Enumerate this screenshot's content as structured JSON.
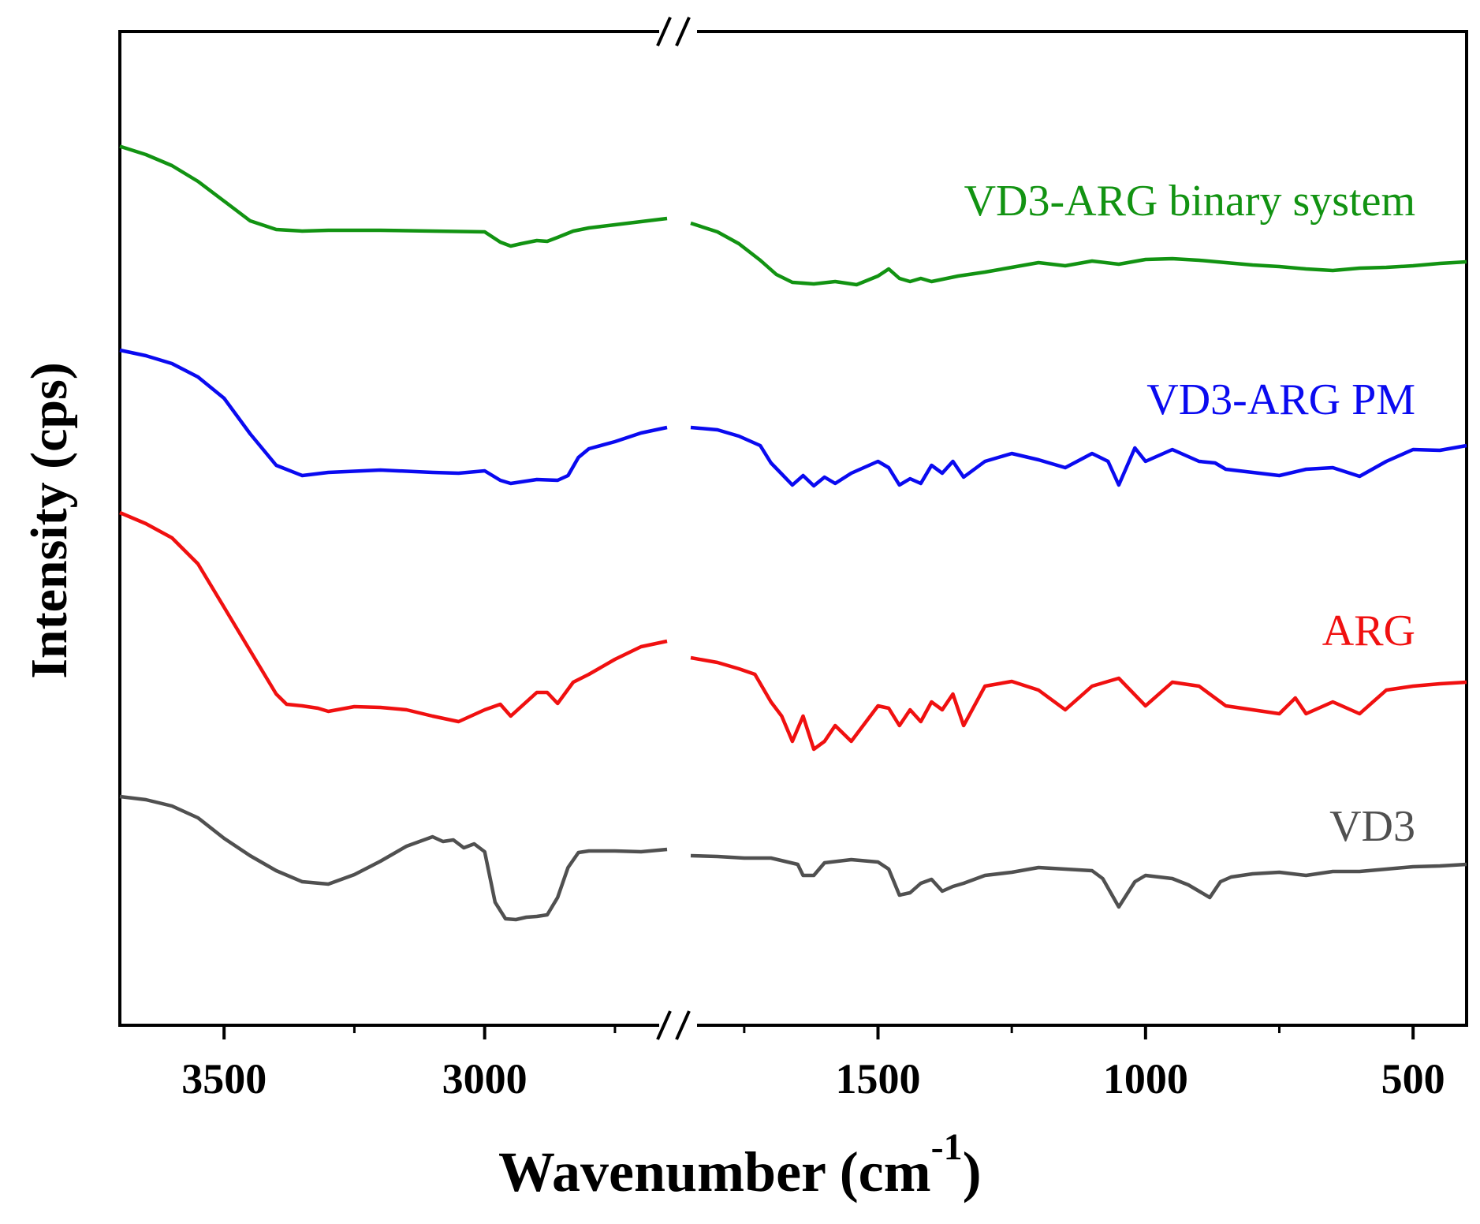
{
  "chart_data": {
    "type": "line",
    "title": "",
    "xlabel": "Wavenumber (cm",
    "xlabel_superscript": "-1",
    "xlabel_close": ")",
    "ylabel": "Intensity (cps)",
    "x_direction": "decreasing",
    "x_break": {
      "between": [
        2650,
        1850
      ]
    },
    "x_segments": [
      {
        "xlim": [
          3700,
          2650
        ],
        "ticks": [
          3500,
          3000
        ],
        "minor_ticks": [
          3250,
          2750
        ]
      },
      {
        "xlim": [
          1850,
          400
        ],
        "ticks": [
          1500,
          1000,
          500
        ],
        "minor_ticks": [
          1750,
          1250,
          750
        ]
      }
    ],
    "yticks_shown": false,
    "series": [
      {
        "name": "VD3-ARG binary system",
        "color": "#129312",
        "points": [
          [
            3700,
            0.5
          ],
          [
            3650,
            11
          ],
          [
            3600,
            25
          ],
          [
            3550,
            45
          ],
          [
            3500,
            70
          ],
          [
            3450,
            95
          ],
          [
            3400,
            106
          ],
          [
            3350,
            108
          ],
          [
            3300,
            107
          ],
          [
            3200,
            107
          ],
          [
            3100,
            108
          ],
          [
            3000,
            109
          ],
          [
            2970,
            122
          ],
          [
            2950,
            127
          ],
          [
            2930,
            124
          ],
          [
            2900,
            120
          ],
          [
            2880,
            121
          ],
          [
            2860,
            116
          ],
          [
            2830,
            108
          ],
          [
            2800,
            104
          ],
          [
            2750,
            100
          ],
          [
            2700,
            96
          ],
          [
            2650,
            92
          ],
          [
            1850,
            98
          ],
          [
            1800,
            109
          ],
          [
            1760,
            124
          ],
          [
            1720,
            145
          ],
          [
            1690,
            163
          ],
          [
            1660,
            173
          ],
          [
            1620,
            175
          ],
          [
            1580,
            172
          ],
          [
            1540,
            176
          ],
          [
            1500,
            165
          ],
          [
            1480,
            156
          ],
          [
            1460,
            168
          ],
          [
            1440,
            172
          ],
          [
            1420,
            168
          ],
          [
            1400,
            172
          ],
          [
            1350,
            165
          ],
          [
            1300,
            160
          ],
          [
            1250,
            154
          ],
          [
            1200,
            148
          ],
          [
            1150,
            152
          ],
          [
            1100,
            146
          ],
          [
            1050,
            150
          ],
          [
            1000,
            144
          ],
          [
            950,
            143
          ],
          [
            900,
            145
          ],
          [
            850,
            148
          ],
          [
            800,
            151
          ],
          [
            750,
            153
          ],
          [
            700,
            156
          ],
          [
            650,
            158
          ],
          [
            600,
            155
          ],
          [
            550,
            154
          ],
          [
            500,
            152
          ],
          [
            450,
            149
          ],
          [
            400,
            147
          ]
        ]
      },
      {
        "name": "VD3-ARG PM",
        "color": "#0a0af0",
        "points": [
          [
            3700,
            -1
          ],
          [
            3650,
            6
          ],
          [
            3600,
            16
          ],
          [
            3550,
            33
          ],
          [
            3500,
            60
          ],
          [
            3450,
            105
          ],
          [
            3400,
            145
          ],
          [
            3350,
            158
          ],
          [
            3300,
            154
          ],
          [
            3200,
            151
          ],
          [
            3100,
            154
          ],
          [
            3050,
            155
          ],
          [
            3000,
            152
          ],
          [
            2970,
            164
          ],
          [
            2950,
            168
          ],
          [
            2900,
            163
          ],
          [
            2860,
            164
          ],
          [
            2840,
            158
          ],
          [
            2820,
            135
          ],
          [
            2800,
            124
          ],
          [
            2750,
            115
          ],
          [
            2700,
            104
          ],
          [
            2650,
            97
          ],
          [
            1850,
            97
          ],
          [
            1800,
            100
          ],
          [
            1760,
            108
          ],
          [
            1720,
            120
          ],
          [
            1700,
            142
          ],
          [
            1680,
            156
          ],
          [
            1660,
            170
          ],
          [
            1640,
            158
          ],
          [
            1620,
            171
          ],
          [
            1600,
            160
          ],
          [
            1580,
            168
          ],
          [
            1550,
            155
          ],
          [
            1500,
            140
          ],
          [
            1480,
            148
          ],
          [
            1460,
            170
          ],
          [
            1440,
            162
          ],
          [
            1420,
            168
          ],
          [
            1400,
            145
          ],
          [
            1380,
            155
          ],
          [
            1360,
            140
          ],
          [
            1340,
            160
          ],
          [
            1300,
            140
          ],
          [
            1250,
            130
          ],
          [
            1200,
            138
          ],
          [
            1150,
            148
          ],
          [
            1100,
            130
          ],
          [
            1070,
            140
          ],
          [
            1050,
            170
          ],
          [
            1020,
            123
          ],
          [
            1000,
            140
          ],
          [
            950,
            125
          ],
          [
            900,
            140
          ],
          [
            870,
            142
          ],
          [
            850,
            150
          ],
          [
            800,
            154
          ],
          [
            750,
            158
          ],
          [
            700,
            150
          ],
          [
            650,
            148
          ],
          [
            600,
            159
          ],
          [
            550,
            140
          ],
          [
            500,
            125
          ],
          [
            450,
            126
          ],
          [
            400,
            120
          ]
        ]
      },
      {
        "name": "ARG",
        "color": "#f01010",
        "points": [
          [
            3700,
            0
          ],
          [
            3650,
            14
          ],
          [
            3600,
            32
          ],
          [
            3550,
            65
          ],
          [
            3500,
            120
          ],
          [
            3450,
            175
          ],
          [
            3400,
            230
          ],
          [
            3380,
            243
          ],
          [
            3350,
            245
          ],
          [
            3320,
            248
          ],
          [
            3300,
            252
          ],
          [
            3250,
            246
          ],
          [
            3200,
            247
          ],
          [
            3150,
            250
          ],
          [
            3100,
            258
          ],
          [
            3050,
            265
          ],
          [
            3000,
            250
          ],
          [
            2970,
            243
          ],
          [
            2950,
            258
          ],
          [
            2900,
            228
          ],
          [
            2880,
            228
          ],
          [
            2860,
            242
          ],
          [
            2830,
            215
          ],
          [
            2800,
            205
          ],
          [
            2750,
            186
          ],
          [
            2700,
            170
          ],
          [
            2650,
            163
          ],
          [
            1850,
            184
          ],
          [
            1800,
            190
          ],
          [
            1760,
            198
          ],
          [
            1730,
            205
          ],
          [
            1700,
            240
          ],
          [
            1680,
            258
          ],
          [
            1660,
            290
          ],
          [
            1640,
            258
          ],
          [
            1620,
            300
          ],
          [
            1600,
            290
          ],
          [
            1580,
            270
          ],
          [
            1550,
            290
          ],
          [
            1500,
            245
          ],
          [
            1480,
            248
          ],
          [
            1460,
            270
          ],
          [
            1440,
            250
          ],
          [
            1420,
            265
          ],
          [
            1400,
            240
          ],
          [
            1380,
            250
          ],
          [
            1360,
            230
          ],
          [
            1340,
            270
          ],
          [
            1300,
            220
          ],
          [
            1250,
            214
          ],
          [
            1200,
            225
          ],
          [
            1150,
            250
          ],
          [
            1100,
            220
          ],
          [
            1050,
            210
          ],
          [
            1000,
            245
          ],
          [
            950,
            215
          ],
          [
            900,
            220
          ],
          [
            850,
            245
          ],
          [
            800,
            250
          ],
          [
            750,
            255
          ],
          [
            720,
            235
          ],
          [
            700,
            255
          ],
          [
            650,
            240
          ],
          [
            600,
            255
          ],
          [
            550,
            225
          ],
          [
            500,
            220
          ],
          [
            450,
            217
          ],
          [
            400,
            215
          ]
        ]
      },
      {
        "name": "VD3",
        "color": "#505050",
        "points": [
          [
            3700,
            0
          ],
          [
            3650,
            4
          ],
          [
            3600,
            12
          ],
          [
            3550,
            27
          ],
          [
            3500,
            53
          ],
          [
            3450,
            75
          ],
          [
            3400,
            94
          ],
          [
            3350,
            108
          ],
          [
            3300,
            111
          ],
          [
            3250,
            99
          ],
          [
            3200,
            82
          ],
          [
            3150,
            63
          ],
          [
            3100,
            51
          ],
          [
            3080,
            57
          ],
          [
            3060,
            55
          ],
          [
            3040,
            65
          ],
          [
            3020,
            60
          ],
          [
            3000,
            70
          ],
          [
            2980,
            134
          ],
          [
            2960,
            155
          ],
          [
            2940,
            156
          ],
          [
            2920,
            153
          ],
          [
            2900,
            152
          ],
          [
            2880,
            150
          ],
          [
            2860,
            128
          ],
          [
            2840,
            90
          ],
          [
            2820,
            71
          ],
          [
            2800,
            69
          ],
          [
            2750,
            69
          ],
          [
            2700,
            70
          ],
          [
            2650,
            67
          ],
          [
            1850,
            75
          ],
          [
            1800,
            76
          ],
          [
            1750,
            78
          ],
          [
            1700,
            78
          ],
          [
            1650,
            86
          ],
          [
            1640,
            100
          ],
          [
            1620,
            100
          ],
          [
            1600,
            84
          ],
          [
            1550,
            80
          ],
          [
            1500,
            83
          ],
          [
            1480,
            92
          ],
          [
            1460,
            125
          ],
          [
            1440,
            122
          ],
          [
            1420,
            110
          ],
          [
            1400,
            105
          ],
          [
            1380,
            120
          ],
          [
            1360,
            114
          ],
          [
            1340,
            110
          ],
          [
            1300,
            100
          ],
          [
            1250,
            96
          ],
          [
            1200,
            90
          ],
          [
            1150,
            92
          ],
          [
            1100,
            94
          ],
          [
            1080,
            104
          ],
          [
            1060,
            128
          ],
          [
            1050,
            140
          ],
          [
            1020,
            108
          ],
          [
            1000,
            100
          ],
          [
            950,
            104
          ],
          [
            920,
            112
          ],
          [
            900,
            120
          ],
          [
            880,
            128
          ],
          [
            860,
            108
          ],
          [
            840,
            102
          ],
          [
            800,
            98
          ],
          [
            750,
            96
          ],
          [
            700,
            100
          ],
          [
            650,
            95
          ],
          [
            600,
            95
          ],
          [
            550,
            92
          ],
          [
            500,
            89
          ],
          [
            450,
            88
          ],
          [
            400,
            86
          ]
        ]
      }
    ]
  }
}
